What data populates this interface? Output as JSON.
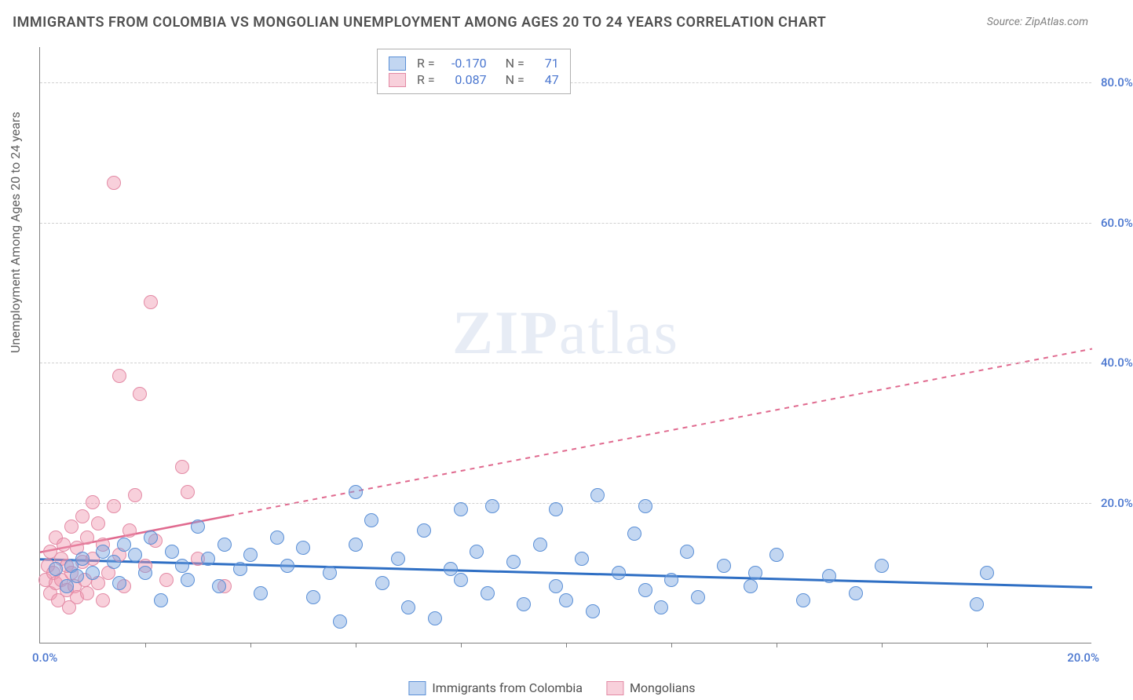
{
  "title": "IMMIGRANTS FROM COLOMBIA VS MONGOLIAN UNEMPLOYMENT AMONG AGES 20 TO 24 YEARS CORRELATION CHART",
  "source": "Source: ZipAtlas.com",
  "y_axis_label": "Unemployment Among Ages 20 to 24 years",
  "watermark_bold": "ZIP",
  "watermark_light": "atlas",
  "chart": {
    "type": "scatter",
    "x_min": 0.0,
    "x_max": 20.0,
    "y_min": 0.0,
    "y_max": 85.0,
    "x_tick_left": "0.0%",
    "x_tick_right": "20.0%",
    "y_ticks": [
      {
        "v": 20.0,
        "label": "20.0%"
      },
      {
        "v": 40.0,
        "label": "40.0%"
      },
      {
        "v": 60.0,
        "label": "60.0%"
      },
      {
        "v": 80.0,
        "label": "80.0%"
      }
    ],
    "x_minor_ticks": [
      2,
      4,
      6,
      8,
      10,
      12,
      14,
      16,
      18
    ],
    "grid_color": "#d0d0d0",
    "background_color": "#ffffff",
    "point_radius": 9,
    "point_stroke_width": 1.5
  },
  "series": [
    {
      "name": "Immigrants from Colombia",
      "fill": "rgba(120,165,225,0.45)",
      "stroke": "#5a8fd6",
      "line_color": "#2f6fc4",
      "line_width": 3,
      "line_dash": "none",
      "R": "-0.170",
      "N": "71",
      "trend": {
        "x1": 0.0,
        "y1": 12.0,
        "x2": 20.0,
        "y2": 8.0
      },
      "points": [
        [
          0.3,
          10.5
        ],
        [
          0.5,
          8.0
        ],
        [
          0.6,
          11.0
        ],
        [
          0.7,
          9.5
        ],
        [
          0.8,
          12.0
        ],
        [
          1.0,
          10.0
        ],
        [
          1.2,
          13.0
        ],
        [
          1.4,
          11.5
        ],
        [
          1.5,
          8.5
        ],
        [
          1.6,
          14.0
        ],
        [
          1.8,
          12.5
        ],
        [
          2.0,
          10.0
        ],
        [
          2.1,
          15.0
        ],
        [
          2.3,
          6.0
        ],
        [
          2.5,
          13.0
        ],
        [
          2.7,
          11.0
        ],
        [
          2.8,
          9.0
        ],
        [
          3.0,
          16.5
        ],
        [
          3.2,
          12.0
        ],
        [
          3.4,
          8.0
        ],
        [
          3.5,
          14.0
        ],
        [
          3.8,
          10.5
        ],
        [
          4.0,
          12.5
        ],
        [
          4.2,
          7.0
        ],
        [
          4.5,
          15.0
        ],
        [
          4.7,
          11.0
        ],
        [
          5.0,
          13.5
        ],
        [
          5.2,
          6.5
        ],
        [
          5.5,
          10.0
        ],
        [
          5.7,
          3.0
        ],
        [
          6.0,
          14.0
        ],
        [
          6.0,
          21.5
        ],
        [
          6.3,
          17.5
        ],
        [
          6.5,
          8.5
        ],
        [
          6.8,
          12.0
        ],
        [
          7.0,
          5.0
        ],
        [
          7.3,
          16.0
        ],
        [
          7.5,
          3.5
        ],
        [
          7.8,
          10.5
        ],
        [
          8.0,
          19.0
        ],
        [
          8.0,
          9.0
        ],
        [
          8.3,
          13.0
        ],
        [
          8.5,
          7.0
        ],
        [
          8.6,
          19.5
        ],
        [
          9.0,
          11.5
        ],
        [
          9.2,
          5.5
        ],
        [
          9.5,
          14.0
        ],
        [
          9.8,
          8.0
        ],
        [
          9.8,
          19.0
        ],
        [
          10.0,
          6.0
        ],
        [
          10.3,
          12.0
        ],
        [
          10.5,
          4.5
        ],
        [
          10.6,
          21.0
        ],
        [
          11.0,
          10.0
        ],
        [
          11.3,
          15.5
        ],
        [
          11.5,
          7.5
        ],
        [
          11.5,
          19.5
        ],
        [
          11.8,
          5.0
        ],
        [
          12.0,
          9.0
        ],
        [
          12.3,
          13.0
        ],
        [
          12.5,
          6.5
        ],
        [
          13.0,
          11.0
        ],
        [
          13.5,
          8.0
        ],
        [
          13.6,
          10.0
        ],
        [
          14.0,
          12.5
        ],
        [
          14.5,
          6.0
        ],
        [
          15.0,
          9.5
        ],
        [
          15.5,
          7.0
        ],
        [
          16.0,
          11.0
        ],
        [
          17.8,
          5.5
        ],
        [
          18.0,
          10.0
        ]
      ]
    },
    {
      "name": "Mongolians",
      "fill": "rgba(240,150,175,0.45)",
      "stroke": "#e38aa5",
      "line_color": "#e06a8f",
      "line_width": 2.5,
      "line_dash": "6,6",
      "R": "0.087",
      "N": "47",
      "trend": {
        "x1": 0.0,
        "y1": 13.0,
        "x2": 20.0,
        "y2": 42.0
      },
      "trend_solid_until_x": 3.6,
      "points": [
        [
          0.1,
          9.0
        ],
        [
          0.15,
          11.0
        ],
        [
          0.2,
          7.0
        ],
        [
          0.2,
          13.0
        ],
        [
          0.25,
          10.0
        ],
        [
          0.3,
          8.5
        ],
        [
          0.3,
          15.0
        ],
        [
          0.35,
          6.0
        ],
        [
          0.4,
          12.0
        ],
        [
          0.4,
          9.0
        ],
        [
          0.45,
          14.0
        ],
        [
          0.5,
          7.5
        ],
        [
          0.5,
          11.0
        ],
        [
          0.55,
          5.0
        ],
        [
          0.6,
          16.5
        ],
        [
          0.6,
          10.0
        ],
        [
          0.65,
          8.0
        ],
        [
          0.7,
          13.5
        ],
        [
          0.7,
          6.5
        ],
        [
          0.8,
          18.0
        ],
        [
          0.8,
          11.5
        ],
        [
          0.85,
          9.0
        ],
        [
          0.9,
          15.0
        ],
        [
          0.9,
          7.0
        ],
        [
          1.0,
          20.0
        ],
        [
          1.0,
          12.0
        ],
        [
          1.1,
          8.5
        ],
        [
          1.1,
          17.0
        ],
        [
          1.2,
          6.0
        ],
        [
          1.2,
          14.0
        ],
        [
          1.3,
          10.0
        ],
        [
          1.4,
          19.5
        ],
        [
          1.4,
          65.5
        ],
        [
          1.5,
          38.0
        ],
        [
          1.5,
          12.5
        ],
        [
          1.6,
          8.0
        ],
        [
          1.7,
          16.0
        ],
        [
          1.8,
          21.0
        ],
        [
          1.9,
          35.5
        ],
        [
          2.0,
          11.0
        ],
        [
          2.1,
          48.5
        ],
        [
          2.2,
          14.5
        ],
        [
          2.4,
          9.0
        ],
        [
          2.7,
          25.0
        ],
        [
          2.8,
          21.5
        ],
        [
          3.0,
          12.0
        ],
        [
          3.5,
          8.0
        ]
      ]
    }
  ],
  "legend_labels": {
    "R": "R =",
    "N": "N ="
  }
}
